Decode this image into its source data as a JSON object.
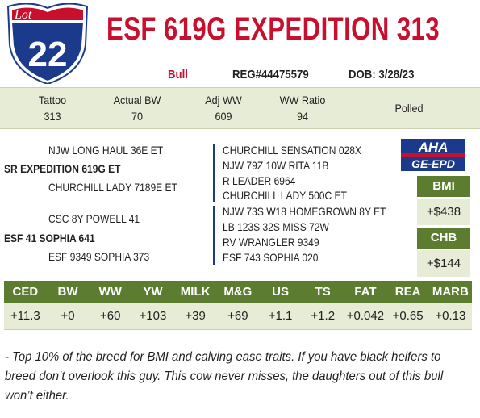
{
  "lot": {
    "label": "Lot",
    "number": "22"
  },
  "title": "ESF 619G EXPEDITION 313",
  "info": {
    "sex": "Bull",
    "reg": "REG#44475579",
    "dob": "DOB: 3/28/23"
  },
  "stats": [
    {
      "label": "Tattoo",
      "value": "313"
    },
    {
      "label": "Actual BW",
      "value": "70"
    },
    {
      "label": "Adj WW",
      "value": "609"
    },
    {
      "label": "WW Ratio",
      "value": "94"
    },
    {
      "label": "Polled"
    }
  ],
  "pedigree": {
    "left": [
      "NJW LONG HAUL 36E ET",
      "SR EXPEDITION 619G ET",
      "CHURCHILL LADY 7189E ET",
      "CSC 8Y POWELL 41",
      "ESF 41 SOPHIA 641",
      "ESF 9349 SOPHIA 373"
    ],
    "right": [
      "CHURCHILL SENSATION 028X",
      "NJW 79Z 10W RITA 11B",
      "R LEADER 6964",
      "CHURCHILL LADY 500C ET",
      "NJW 73S W18 HOMEGROWN 8Y ET",
      "LB 123S 32S MISS 72W",
      "RV WRANGLER 9349",
      "ESF 743 SOPHIA 020"
    ]
  },
  "logo": {
    "top": "AHA",
    "bottom": "GE-EPD"
  },
  "indexes": [
    {
      "name": "BMI",
      "value": "+$438"
    },
    {
      "name": "CHB",
      "value": "+$144"
    }
  ],
  "epd": {
    "headers": [
      "CED",
      "BW",
      "WW",
      "YW",
      "MILK",
      "M&G",
      "US",
      "TS",
      "FAT",
      "REA",
      "MARB"
    ],
    "values": [
      "+11.3",
      "+0",
      "+60",
      "+103",
      "+39",
      "+69",
      "+1.1",
      "+1.2",
      "+0.042",
      "+0.65",
      "+0.13"
    ]
  },
  "comment": "- Top 10% of the breed for BMI and calving ease traits.  If you have black heifers to breed don’t overlook this guy.  This cow never misses, the daughters out of this bull won’t either."
}
